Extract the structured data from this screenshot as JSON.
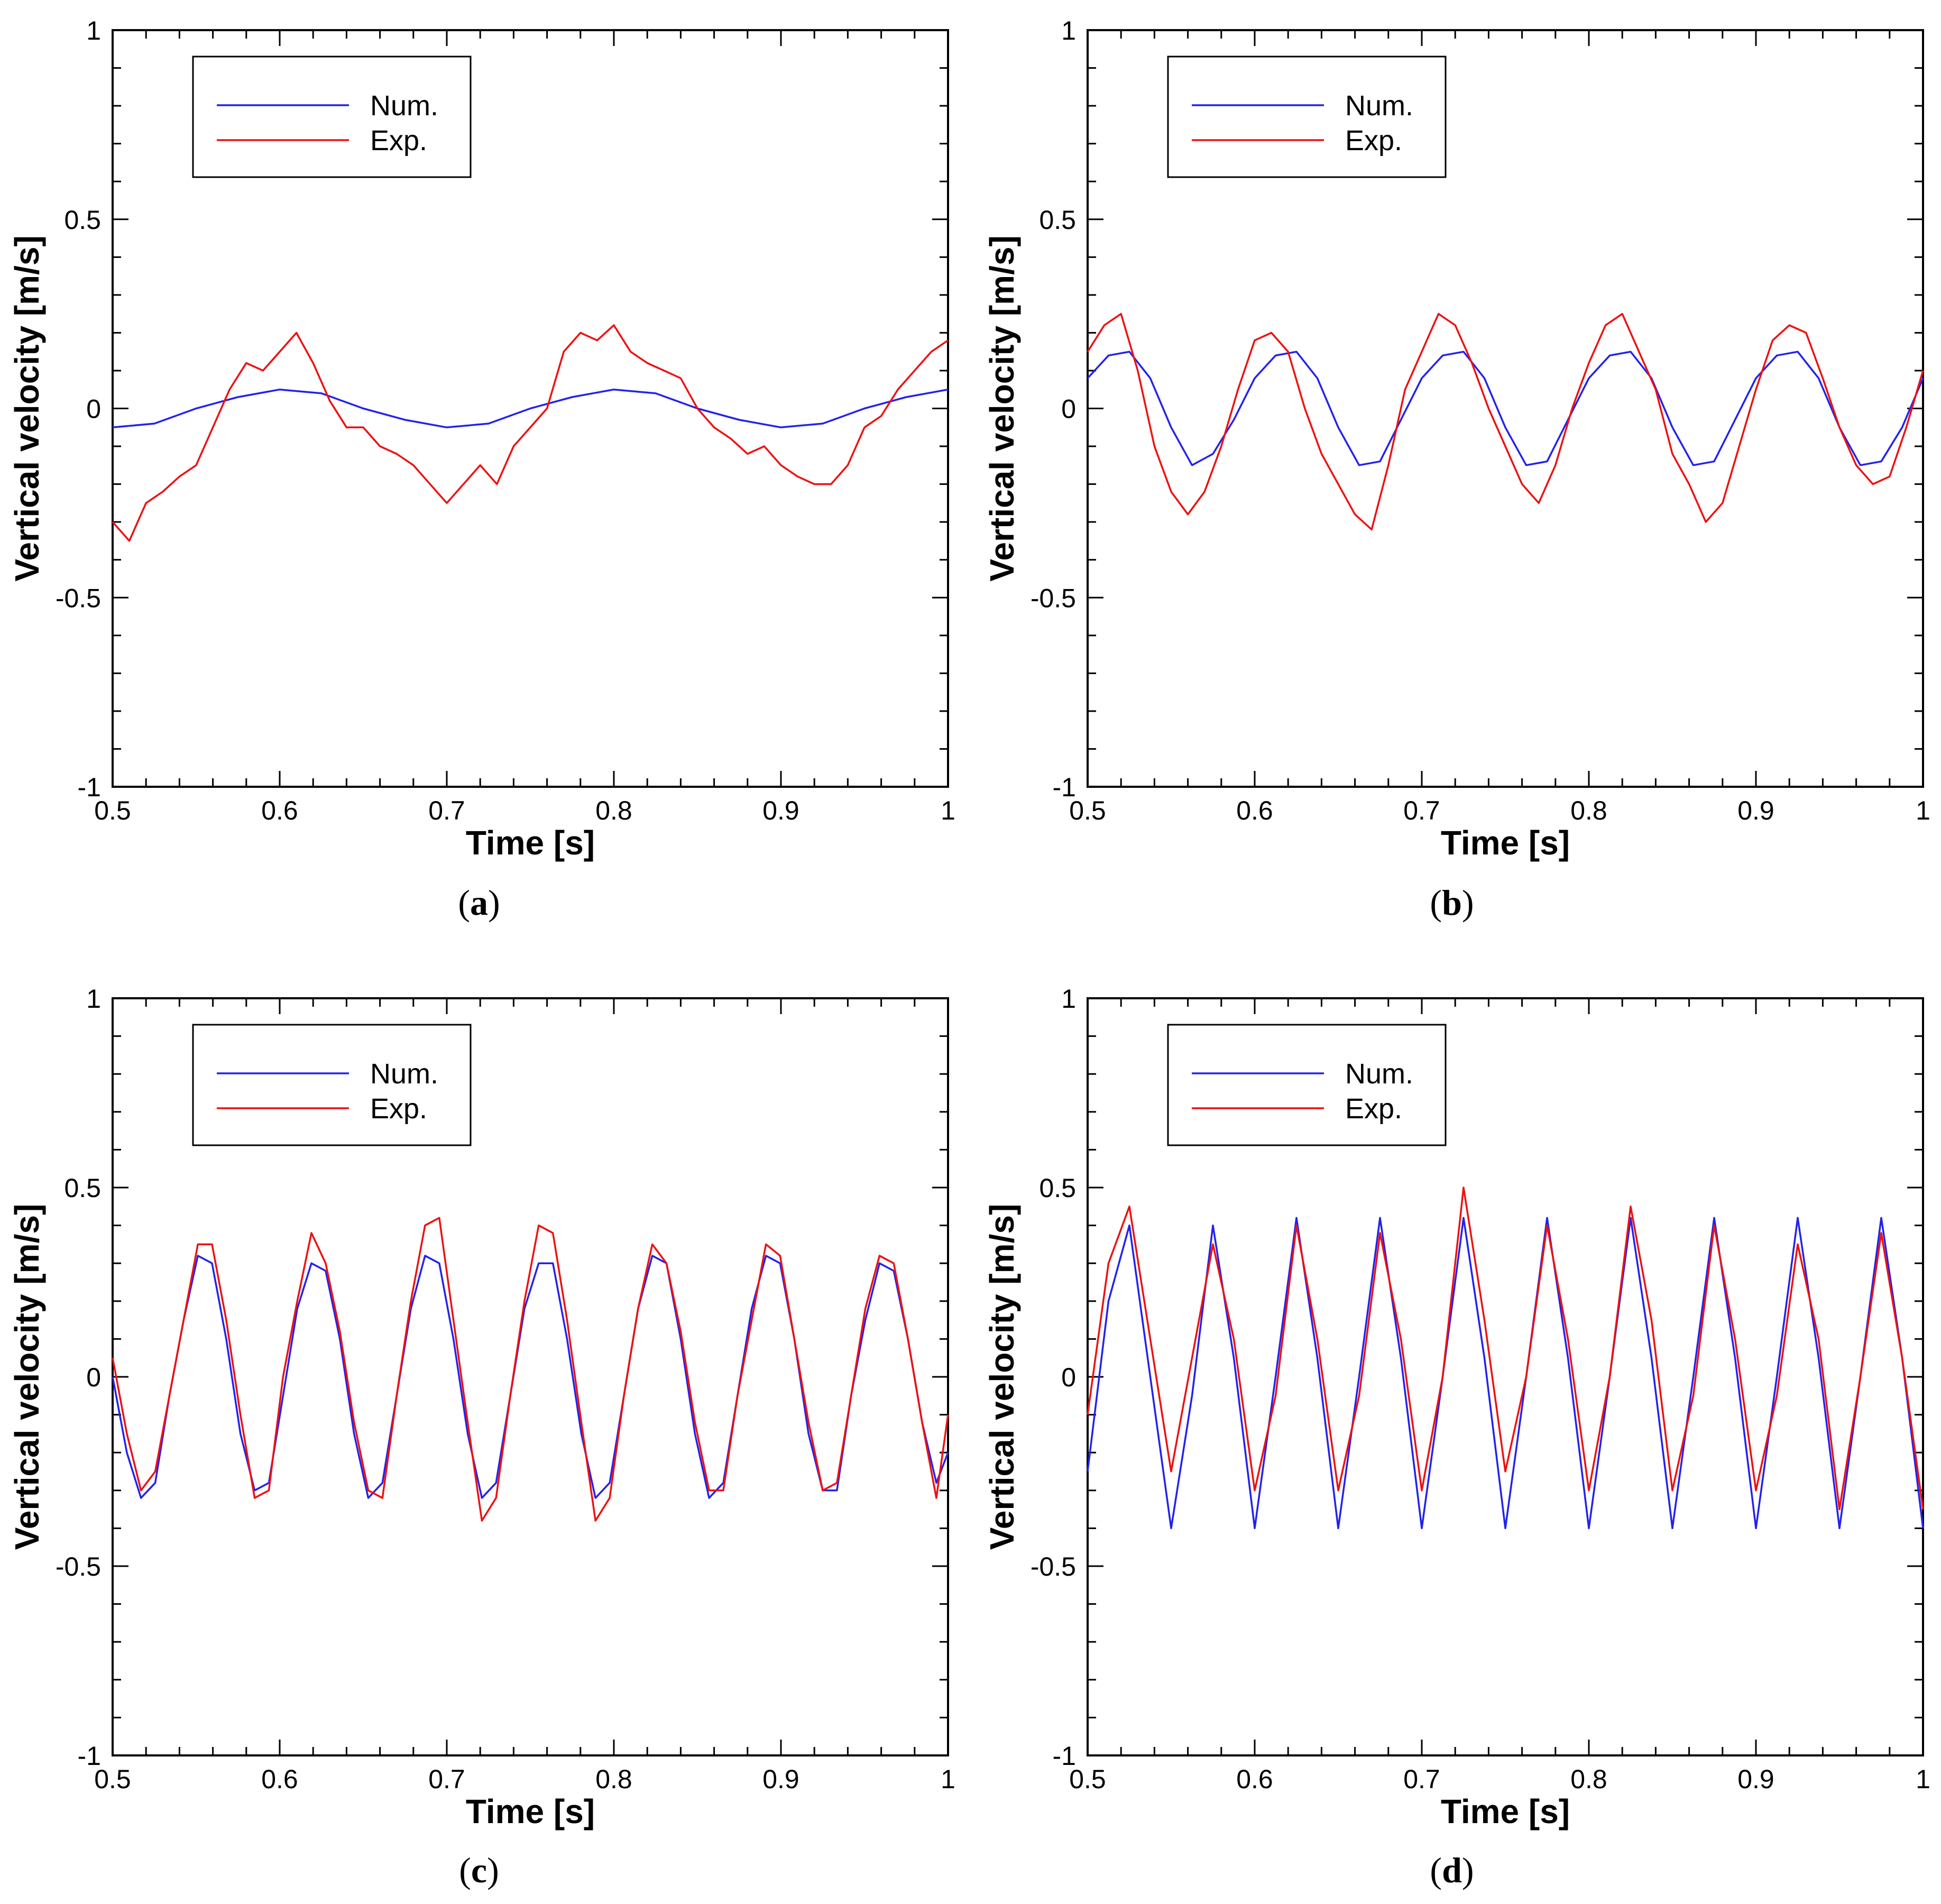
{
  "figure": {
    "colors": {
      "num": "#2222ee",
      "exp": "#ee1111",
      "axis": "#000000"
    }
  },
  "chart_data": [
    {
      "type": "line",
      "panel": "a",
      "caption_label": "a",
      "xlabel": "Time [s]",
      "ylabel": "Vertical velocity [m/s]",
      "xlim": [
        0.5,
        1.0
      ],
      "ylim": [
        -1,
        1
      ],
      "xticks": [
        "0.5",
        "0.6",
        "0.7",
        "0.8",
        "0.9",
        "1"
      ],
      "yticks": [
        "-1",
        "-0.5",
        "0",
        "0.5",
        "1"
      ],
      "xtick_values": [
        0.5,
        0.6,
        0.7,
        0.8,
        0.9,
        1.0
      ],
      "ytick_values": [
        -1,
        -0.5,
        0,
        0.5,
        1
      ],
      "legend": {
        "position": "top-left",
        "entries": [
          "Num.",
          "Exp."
        ]
      },
      "series": [
        {
          "name": "Num.",
          "x": [
            0.5,
            0.525,
            0.55,
            0.575,
            0.6,
            0.625,
            0.65,
            0.675,
            0.7,
            0.725,
            0.75,
            0.775,
            0.8,
            0.825,
            0.85,
            0.875,
            0.9,
            0.925,
            0.95,
            0.975,
            1.0
          ],
          "values": [
            -0.05,
            -0.04,
            0.0,
            0.03,
            0.05,
            0.04,
            0.0,
            -0.03,
            -0.05,
            -0.04,
            0.0,
            0.03,
            0.05,
            0.04,
            0.0,
            -0.03,
            -0.05,
            -0.04,
            0.0,
            0.03,
            0.05
          ]
        },
        {
          "name": "Exp.",
          "x": [
            0.5,
            0.51,
            0.52,
            0.53,
            0.54,
            0.55,
            0.56,
            0.57,
            0.58,
            0.59,
            0.6,
            0.61,
            0.62,
            0.63,
            0.64,
            0.65,
            0.66,
            0.67,
            0.68,
            0.69,
            0.7,
            0.71,
            0.72,
            0.73,
            0.74,
            0.75,
            0.76,
            0.77,
            0.78,
            0.79,
            0.8,
            0.81,
            0.82,
            0.83,
            0.84,
            0.85,
            0.86,
            0.87,
            0.88,
            0.89,
            0.9,
            0.91,
            0.92,
            0.93,
            0.94,
            0.95,
            0.96,
            0.97,
            0.98,
            0.99,
            1.0
          ],
          "values": [
            -0.3,
            -0.35,
            -0.25,
            -0.22,
            -0.18,
            -0.15,
            -0.05,
            0.05,
            0.12,
            0.1,
            0.15,
            0.2,
            0.12,
            0.02,
            -0.05,
            -0.05,
            -0.1,
            -0.12,
            -0.15,
            -0.2,
            -0.25,
            -0.2,
            -0.15,
            -0.2,
            -0.1,
            -0.05,
            0.0,
            0.15,
            0.2,
            0.18,
            0.22,
            0.15,
            0.12,
            0.1,
            0.08,
            0.0,
            -0.05,
            -0.08,
            -0.12,
            -0.1,
            -0.15,
            -0.18,
            -0.2,
            -0.2,
            -0.15,
            -0.05,
            -0.02,
            0.05,
            0.1,
            0.15,
            0.18
          ]
        }
      ]
    },
    {
      "type": "line",
      "panel": "b",
      "caption_label": "b",
      "xlabel": "Time [s]",
      "ylabel": "Vertical velocity [m/s]",
      "xlim": [
        0.5,
        1.0
      ],
      "ylim": [
        -1,
        1
      ],
      "xticks": [
        "0.5",
        "0.6",
        "0.7",
        "0.8",
        "0.9",
        "1"
      ],
      "yticks": [
        "-1",
        "-0.5",
        "0",
        "0.5",
        "1"
      ],
      "xtick_values": [
        0.5,
        0.6,
        0.7,
        0.8,
        0.9,
        1.0
      ],
      "ytick_values": [
        -1,
        -0.5,
        0,
        0.5,
        1
      ],
      "legend": {
        "position": "top-left",
        "entries": [
          "Num.",
          "Exp."
        ]
      },
      "series": [
        {
          "name": "Num.",
          "x": [
            0.5,
            0.5125,
            0.525,
            0.5375,
            0.55,
            0.5625,
            0.575,
            0.5875,
            0.6,
            0.6125,
            0.625,
            0.6375,
            0.65,
            0.6625,
            0.675,
            0.6875,
            0.7,
            0.7125,
            0.725,
            0.7375,
            0.75,
            0.7625,
            0.775,
            0.7875,
            0.8,
            0.8125,
            0.825,
            0.8375,
            0.85,
            0.8625,
            0.875,
            0.8875,
            0.9,
            0.9125,
            0.925,
            0.9375,
            0.95,
            0.9625,
            0.975,
            0.9875,
            1.0
          ],
          "values": [
            0.08,
            0.14,
            0.15,
            0.08,
            -0.05,
            -0.15,
            -0.12,
            -0.03,
            0.08,
            0.14,
            0.15,
            0.08,
            -0.05,
            -0.15,
            -0.14,
            -0.03,
            0.08,
            0.14,
            0.15,
            0.08,
            -0.05,
            -0.15,
            -0.14,
            -0.03,
            0.08,
            0.14,
            0.15,
            0.08,
            -0.05,
            -0.15,
            -0.14,
            -0.03,
            0.08,
            0.14,
            0.15,
            0.08,
            -0.05,
            -0.15,
            -0.14,
            -0.05,
            0.08
          ]
        },
        {
          "name": "Exp.",
          "x": [
            0.5,
            0.51,
            0.52,
            0.53,
            0.54,
            0.55,
            0.56,
            0.57,
            0.58,
            0.59,
            0.6,
            0.61,
            0.62,
            0.63,
            0.64,
            0.65,
            0.66,
            0.67,
            0.68,
            0.69,
            0.7,
            0.71,
            0.72,
            0.73,
            0.74,
            0.75,
            0.76,
            0.77,
            0.78,
            0.79,
            0.8,
            0.81,
            0.82,
            0.83,
            0.84,
            0.85,
            0.86,
            0.87,
            0.88,
            0.89,
            0.9,
            0.91,
            0.92,
            0.93,
            0.94,
            0.95,
            0.96,
            0.97,
            0.98,
            0.99,
            1.0
          ],
          "values": [
            0.15,
            0.22,
            0.25,
            0.1,
            -0.1,
            -0.22,
            -0.28,
            -0.22,
            -0.1,
            0.05,
            0.18,
            0.2,
            0.15,
            0.0,
            -0.12,
            -0.2,
            -0.28,
            -0.32,
            -0.15,
            0.05,
            0.15,
            0.25,
            0.22,
            0.12,
            0.0,
            -0.1,
            -0.2,
            -0.25,
            -0.15,
            0.0,
            0.12,
            0.22,
            0.25,
            0.15,
            0.05,
            -0.12,
            -0.2,
            -0.3,
            -0.25,
            -0.1,
            0.05,
            0.18,
            0.22,
            0.2,
            0.08,
            -0.05,
            -0.15,
            -0.2,
            -0.18,
            -0.05,
            0.1
          ]
        }
      ]
    },
    {
      "type": "line",
      "panel": "c",
      "caption_label": "c",
      "xlabel": "Time [s]",
      "ylabel": "Vertical velocity [m/s]",
      "xlim": [
        0.5,
        1.0
      ],
      "ylim": [
        -1,
        1
      ],
      "xticks": [
        "0.5",
        "0.6",
        "0.7",
        "0.8",
        "0.9",
        "1"
      ],
      "yticks": [
        "-1",
        "-0.5",
        "0",
        "0.5",
        "1"
      ],
      "xtick_values": [
        0.5,
        0.6,
        0.7,
        0.8,
        0.9,
        1.0
      ],
      "ytick_values": [
        -1,
        -0.5,
        0,
        0.5,
        1
      ],
      "legend": {
        "position": "top-left",
        "entries": [
          "Num.",
          "Exp."
        ]
      },
      "series": [
        {
          "name": "Num.",
          "x": [
            0.5,
            0.5085,
            0.517,
            0.5255,
            0.534,
            0.5425,
            0.551,
            0.5595,
            0.568,
            0.5765,
            0.585,
            0.5935,
            0.602,
            0.6105,
            0.619,
            0.6275,
            0.636,
            0.6445,
            0.653,
            0.6615,
            0.67,
            0.6785,
            0.687,
            0.6955,
            0.704,
            0.7125,
            0.721,
            0.7295,
            0.738,
            0.7465,
            0.755,
            0.7635,
            0.772,
            0.7805,
            0.789,
            0.7975,
            0.806,
            0.8145,
            0.823,
            0.8315,
            0.84,
            0.8485,
            0.857,
            0.8655,
            0.874,
            0.8825,
            0.891,
            0.8995,
            0.908,
            0.9165,
            0.925,
            0.9335,
            0.942,
            0.9505,
            0.959,
            0.9675,
            0.976,
            0.9845,
            0.993,
            1.0
          ],
          "values": [
            0.0,
            -0.2,
            -0.32,
            -0.28,
            -0.05,
            0.15,
            0.32,
            0.3,
            0.1,
            -0.15,
            -0.3,
            -0.28,
            -0.05,
            0.18,
            0.3,
            0.28,
            0.1,
            -0.15,
            -0.32,
            -0.28,
            -0.05,
            0.18,
            0.32,
            0.3,
            0.1,
            -0.15,
            -0.32,
            -0.28,
            -0.05,
            0.18,
            0.3,
            0.3,
            0.1,
            -0.15,
            -0.32,
            -0.28,
            -0.05,
            0.18,
            0.32,
            0.3,
            0.1,
            -0.15,
            -0.32,
            -0.28,
            -0.05,
            0.18,
            0.32,
            0.3,
            0.1,
            -0.15,
            -0.3,
            -0.3,
            -0.05,
            0.15,
            0.3,
            0.28,
            0.1,
            -0.12,
            -0.28,
            -0.2
          ]
        },
        {
          "name": "Exp.",
          "x": [
            0.5,
            0.5085,
            0.517,
            0.5255,
            0.534,
            0.5425,
            0.551,
            0.5595,
            0.568,
            0.5765,
            0.585,
            0.5935,
            0.602,
            0.6105,
            0.619,
            0.6275,
            0.636,
            0.6445,
            0.653,
            0.6615,
            0.67,
            0.6785,
            0.687,
            0.6955,
            0.704,
            0.7125,
            0.721,
            0.7295,
            0.738,
            0.7465,
            0.755,
            0.7635,
            0.772,
            0.7805,
            0.789,
            0.7975,
            0.806,
            0.8145,
            0.823,
            0.8315,
            0.84,
            0.8485,
            0.857,
            0.8655,
            0.874,
            0.8825,
            0.891,
            0.8995,
            0.908,
            0.9165,
            0.925,
            0.9335,
            0.942,
            0.9505,
            0.959,
            0.9675,
            0.976,
            0.9845,
            0.993,
            1.0
          ],
          "values": [
            0.05,
            -0.15,
            -0.3,
            -0.25,
            -0.05,
            0.15,
            0.35,
            0.35,
            0.15,
            -0.1,
            -0.32,
            -0.3,
            0.0,
            0.2,
            0.38,
            0.3,
            0.12,
            -0.12,
            -0.3,
            -0.32,
            -0.05,
            0.2,
            0.4,
            0.42,
            0.15,
            -0.12,
            -0.38,
            -0.32,
            -0.05,
            0.2,
            0.4,
            0.38,
            0.15,
            -0.12,
            -0.38,
            -0.32,
            -0.05,
            0.18,
            0.35,
            0.3,
            0.12,
            -0.12,
            -0.3,
            -0.3,
            -0.05,
            0.15,
            0.35,
            0.32,
            0.1,
            -0.12,
            -0.3,
            -0.28,
            -0.05,
            0.18,
            0.32,
            0.3,
            0.1,
            -0.12,
            -0.32,
            -0.1
          ]
        }
      ]
    },
    {
      "type": "line",
      "panel": "d",
      "caption_label": "d",
      "xlabel": "Time [s]",
      "ylabel": "Vertical velocity [m/s]",
      "xlim": [
        0.5,
        1.0
      ],
      "ylim": [
        -1,
        1
      ],
      "xticks": [
        "0.5",
        "0.6",
        "0.7",
        "0.8",
        "0.9",
        "1"
      ],
      "yticks": [
        "-1",
        "-0.5",
        "0",
        "0.5",
        "1"
      ],
      "xtick_values": [
        0.5,
        0.6,
        0.7,
        0.8,
        0.9,
        1.0
      ],
      "ytick_values": [
        -1,
        -0.5,
        0,
        0.5,
        1
      ],
      "legend": {
        "position": "top-left",
        "entries": [
          "Num.",
          "Exp."
        ]
      },
      "series": [
        {
          "name": "Num.",
          "x": [
            0.5,
            0.5125,
            0.525,
            0.5375,
            0.55,
            0.5625,
            0.575,
            0.5875,
            0.6,
            0.6125,
            0.625,
            0.6375,
            0.65,
            0.6625,
            0.675,
            0.6875,
            0.7,
            0.7125,
            0.725,
            0.7375,
            0.75,
            0.7625,
            0.775,
            0.7875,
            0.8,
            0.8125,
            0.825,
            0.8375,
            0.85,
            0.8625,
            0.875,
            0.8875,
            0.9,
            0.9125,
            0.925,
            0.9375,
            0.95,
            0.9625,
            0.975,
            0.9875,
            1.0
          ],
          "values": [
            -0.25,
            0.2,
            0.4,
            0.0,
            -0.4,
            -0.05,
            0.4,
            0.05,
            -0.4,
            0.0,
            0.42,
            0.05,
            -0.4,
            0.0,
            0.42,
            0.05,
            -0.4,
            0.0,
            0.42,
            0.05,
            -0.4,
            0.0,
            0.42,
            0.05,
            -0.4,
            0.0,
            0.42,
            0.05,
            -0.4,
            0.0,
            0.42,
            0.05,
            -0.4,
            0.0,
            0.42,
            0.05,
            -0.4,
            0.0,
            0.42,
            0.05,
            -0.4
          ]
        },
        {
          "name": "Exp.",
          "x": [
            0.5,
            0.5125,
            0.525,
            0.5375,
            0.55,
            0.5625,
            0.575,
            0.5875,
            0.6,
            0.6125,
            0.625,
            0.6375,
            0.65,
            0.6625,
            0.675,
            0.6875,
            0.7,
            0.7125,
            0.725,
            0.7375,
            0.75,
            0.7625,
            0.775,
            0.7875,
            0.8,
            0.8125,
            0.825,
            0.8375,
            0.85,
            0.8625,
            0.875,
            0.8875,
            0.9,
            0.9125,
            0.925,
            0.9375,
            0.95,
            0.9625,
            0.975,
            0.9875,
            1.0
          ],
          "values": [
            -0.1,
            0.3,
            0.45,
            0.1,
            -0.25,
            0.05,
            0.35,
            0.1,
            -0.3,
            -0.05,
            0.4,
            0.1,
            -0.3,
            -0.05,
            0.38,
            0.1,
            -0.3,
            0.0,
            0.5,
            0.15,
            -0.25,
            0.0,
            0.4,
            0.1,
            -0.3,
            0.0,
            0.45,
            0.15,
            -0.3,
            -0.05,
            0.4,
            0.1,
            -0.3,
            -0.05,
            0.35,
            0.1,
            -0.35,
            0.0,
            0.38,
            0.05,
            -0.35
          ]
        }
      ]
    }
  ]
}
